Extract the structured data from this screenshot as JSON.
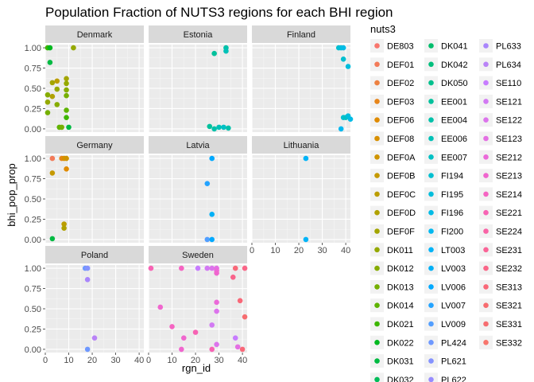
{
  "chart_data": {
    "type": "scatter",
    "title": "Population Fraction of NUTS3 regions for each BHI region",
    "xlabel": "rgn_id",
    "ylabel": "bhi_pop_prop",
    "xlim": [
      0,
      42
    ],
    "ylim": [
      -0.04,
      1.04
    ],
    "x_ticks": [
      0,
      10,
      20,
      30,
      40
    ],
    "y_ticks": [
      0.0,
      0.25,
      0.5,
      0.75,
      1.0
    ],
    "y_tick_labels": [
      "0.00",
      "0.25",
      "0.50",
      "0.75",
      "1.00"
    ],
    "grid": true,
    "facet_layout": {
      "columns": 3,
      "rows": 3
    },
    "legend": {
      "title": "nuts3",
      "placement": "right",
      "entries": [
        {
          "name": "DE803",
          "color": "#F8766D"
        },
        {
          "name": "DEF01",
          "color": "#F37B59"
        },
        {
          "name": "DEF02",
          "color": "#ED8141"
        },
        {
          "name": "DEF03",
          "color": "#E7861B"
        },
        {
          "name": "DEF06",
          "color": "#E08B00"
        },
        {
          "name": "DEF08",
          "color": "#D89000"
        },
        {
          "name": "DEF0A",
          "color": "#CF9400"
        },
        {
          "name": "DEF0B",
          "color": "#C59900"
        },
        {
          "name": "DEF0C",
          "color": "#BB9D00"
        },
        {
          "name": "DEF0D",
          "color": "#B0A100"
        },
        {
          "name": "DEF0F",
          "color": "#A3A500"
        },
        {
          "name": "DK011",
          "color": "#95A900"
        },
        {
          "name": "DK012",
          "color": "#86AC00"
        },
        {
          "name": "DK013",
          "color": "#75AF00"
        },
        {
          "name": "DK014",
          "color": "#5EB300"
        },
        {
          "name": "DK021",
          "color": "#3DB600"
        },
        {
          "name": "DK022",
          "color": "#00B81F"
        },
        {
          "name": "DK031",
          "color": "#00BA42"
        },
        {
          "name": "DK032",
          "color": "#00BC59"
        },
        {
          "name": "DK041",
          "color": "#00BD6C"
        },
        {
          "name": "DK042",
          "color": "#00BF7D"
        },
        {
          "name": "DK050",
          "color": "#00C08D"
        },
        {
          "name": "EE001",
          "color": "#00C19C"
        },
        {
          "name": "EE004",
          "color": "#00C1AA"
        },
        {
          "name": "EE006",
          "color": "#00C1B7"
        },
        {
          "name": "EE007",
          "color": "#00C0C4"
        },
        {
          "name": "FI194",
          "color": "#00BFD0"
        },
        {
          "name": "FI195",
          "color": "#00BDDC"
        },
        {
          "name": "FI196",
          "color": "#00BBE6"
        },
        {
          "name": "FI200",
          "color": "#00B8F0"
        },
        {
          "name": "LT003",
          "color": "#00B4F8"
        },
        {
          "name": "LV003",
          "color": "#00B0F6"
        },
        {
          "name": "LV006",
          "color": "#00A9FF"
        },
        {
          "name": "LV007",
          "color": "#23A3FF"
        },
        {
          "name": "LV009",
          "color": "#529EFF"
        },
        {
          "name": "PL424",
          "color": "#6E98FF"
        },
        {
          "name": "PL621",
          "color": "#8492FF"
        },
        {
          "name": "PL622",
          "color": "#978CFF"
        },
        {
          "name": "PL633",
          "color": "#A986FC"
        },
        {
          "name": "PL634",
          "color": "#B983F7"
        },
        {
          "name": "SE110",
          "color": "#C77CFF"
        },
        {
          "name": "SE121",
          "color": "#D279F3"
        },
        {
          "name": "SE122",
          "color": "#DC74EC"
        },
        {
          "name": "SE123",
          "color": "#E46FE3"
        },
        {
          "name": "SE212",
          "color": "#EB6AD9"
        },
        {
          "name": "SE213",
          "color": "#F066CE"
        },
        {
          "name": "SE214",
          "color": "#F564C2"
        },
        {
          "name": "SE221",
          "color": "#F763B4"
        },
        {
          "name": "SE224",
          "color": "#F963A6"
        },
        {
          "name": "SE231",
          "color": "#FA6497"
        },
        {
          "name": "SE232",
          "color": "#FA6688"
        },
        {
          "name": "SE313",
          "color": "#F96878"
        },
        {
          "name": "SE321",
          "color": "#F76B6E"
        },
        {
          "name": "SE331",
          "color": "#F66D70"
        },
        {
          "name": "SE332",
          "color": "#F8766D"
        }
      ]
    },
    "panels": [
      {
        "country": "Denmark",
        "points": [
          {
            "x": 1,
            "y": 1.0,
            "c": "#3DB600"
          },
          {
            "x": 2,
            "y": 1.0,
            "c": "#00B81F"
          },
          {
            "x": 2,
            "y": 0.82,
            "c": "#00BA42"
          },
          {
            "x": 1,
            "y": 0.42,
            "c": "#86AC00"
          },
          {
            "x": 1,
            "y": 0.2,
            "c": "#75AF00"
          },
          {
            "x": 1,
            "y": 0.33,
            "c": "#95A900"
          },
          {
            "x": 3,
            "y": 0.57,
            "c": "#A3A500"
          },
          {
            "x": 3,
            "y": 0.4,
            "c": "#B0A100"
          },
          {
            "x": 5,
            "y": 0.59,
            "c": "#BB9D00"
          },
          {
            "x": 5,
            "y": 0.49,
            "c": "#95A900"
          },
          {
            "x": 5,
            "y": 0.3,
            "c": "#86AC00"
          },
          {
            "x": 6,
            "y": 0.02,
            "c": "#5EB300"
          },
          {
            "x": 7,
            "y": 0.02,
            "c": "#75AF00"
          },
          {
            "x": 9,
            "y": 0.62,
            "c": "#A3A500"
          },
          {
            "x": 9,
            "y": 0.56,
            "c": "#95A900"
          },
          {
            "x": 9,
            "y": 0.48,
            "c": "#86AC00"
          },
          {
            "x": 9,
            "y": 0.41,
            "c": "#75AF00"
          },
          {
            "x": 9,
            "y": 0.23,
            "c": "#5EB300"
          },
          {
            "x": 9,
            "y": 0.14,
            "c": "#3DB600"
          },
          {
            "x": 10,
            "y": 0.02,
            "c": "#00BA42"
          },
          {
            "x": 12,
            "y": 1.0,
            "c": "#95A900"
          }
        ]
      },
      {
        "country": "Estonia",
        "points": [
          {
            "x": 28,
            "y": 0.93,
            "c": "#00C19C"
          },
          {
            "x": 33,
            "y": 1.0,
            "c": "#00C1AA"
          },
          {
            "x": 33,
            "y": 0.96,
            "c": "#00C1B7"
          },
          {
            "x": 26,
            "y": 0.03,
            "c": "#00C19C"
          },
          {
            "x": 28,
            "y": 0.0,
            "c": "#00C1AA"
          },
          {
            "x": 30,
            "y": 0.02,
            "c": "#00C1B7"
          },
          {
            "x": 32,
            "y": 0.02,
            "c": "#00C0C4"
          },
          {
            "x": 34,
            "y": 0.01,
            "c": "#00C1AA"
          }
        ]
      },
      {
        "country": "Finland",
        "points": [
          {
            "x": 37,
            "y": 1.0,
            "c": "#00BFD0"
          },
          {
            "x": 38,
            "y": 1.0,
            "c": "#00BDDC"
          },
          {
            "x": 39,
            "y": 1.0,
            "c": "#00BBE6"
          },
          {
            "x": 39,
            "y": 0.86,
            "c": "#00BFD0"
          },
          {
            "x": 41,
            "y": 0.77,
            "c": "#00BDDC"
          },
          {
            "x": 39,
            "y": 0.14,
            "c": "#00BFD0"
          },
          {
            "x": 40,
            "y": 0.14,
            "c": "#00C0C4"
          },
          {
            "x": 41,
            "y": 0.16,
            "c": "#00BDDC"
          },
          {
            "x": 42,
            "y": 0.12,
            "c": "#00BBE6"
          },
          {
            "x": 38,
            "y": 0.0,
            "c": "#00B8F0"
          }
        ]
      },
      {
        "country": "Germany",
        "points": [
          {
            "x": 3,
            "y": 1.0,
            "c": "#F37B59"
          },
          {
            "x": 7,
            "y": 1.0,
            "c": "#E7861B"
          },
          {
            "x": 8,
            "y": 1.0,
            "c": "#D89000"
          },
          {
            "x": 9,
            "y": 1.0,
            "c": "#CF9400"
          },
          {
            "x": 3,
            "y": 0.82,
            "c": "#C59900"
          },
          {
            "x": 9,
            "y": 0.87,
            "c": "#E08B00"
          },
          {
            "x": 8,
            "y": 0.19,
            "c": "#BB9D00"
          },
          {
            "x": 8,
            "y": 0.14,
            "c": "#B0A100"
          },
          {
            "x": 3,
            "y": 0.01,
            "c": "#00BA42"
          }
        ]
      },
      {
        "country": "Latvia",
        "points": [
          {
            "x": 27,
            "y": 1.0,
            "c": "#00A9FF"
          },
          {
            "x": 25,
            "y": 0.69,
            "c": "#23A3FF"
          },
          {
            "x": 27,
            "y": 0.31,
            "c": "#00B0F6"
          },
          {
            "x": 25,
            "y": 0.0,
            "c": "#529EFF"
          },
          {
            "x": 27,
            "y": 0.0,
            "c": "#00A9FF"
          }
        ]
      },
      {
        "country": "Lithuania",
        "points": [
          {
            "x": 23,
            "y": 1.0,
            "c": "#00B4F8"
          },
          {
            "x": 23,
            "y": 0.0,
            "c": "#00B4F8"
          }
        ]
      },
      {
        "country": "Poland",
        "points": [
          {
            "x": 17,
            "y": 1.0,
            "c": "#6E98FF"
          },
          {
            "x": 18,
            "y": 1.0,
            "c": "#8492FF"
          },
          {
            "x": 18,
            "y": 0.86,
            "c": "#A986FC"
          },
          {
            "x": 21,
            "y": 0.14,
            "c": "#B983F7"
          },
          {
            "x": 18,
            "y": 0.0,
            "c": "#6E98FF"
          }
        ]
      },
      {
        "country": "Sweden",
        "points": [
          {
            "x": 1,
            "y": 1.0,
            "c": "#F763B4"
          },
          {
            "x": 14,
            "y": 1.0,
            "c": "#F564C2"
          },
          {
            "x": 21,
            "y": 1.0,
            "c": "#C77CFF"
          },
          {
            "x": 25,
            "y": 1.0,
            "c": "#D279F3"
          },
          {
            "x": 27,
            "y": 1.0,
            "c": "#DC74EC"
          },
          {
            "x": 29,
            "y": 1.0,
            "c": "#E46FE3"
          },
          {
            "x": 37,
            "y": 1.0,
            "c": "#F96878"
          },
          {
            "x": 41,
            "y": 1.0,
            "c": "#FA6688"
          },
          {
            "x": 29,
            "y": 0.97,
            "c": "#EB6AD9"
          },
          {
            "x": 29,
            "y": 0.94,
            "c": "#F066CE"
          },
          {
            "x": 36,
            "y": 0.89,
            "c": "#F9638A"
          },
          {
            "x": 39,
            "y": 0.6,
            "c": "#F96878"
          },
          {
            "x": 29,
            "y": 0.58,
            "c": "#EB6AD9"
          },
          {
            "x": 5,
            "y": 0.52,
            "c": "#F066CE"
          },
          {
            "x": 29,
            "y": 0.47,
            "c": "#DC74EC"
          },
          {
            "x": 41,
            "y": 0.4,
            "c": "#F66D70"
          },
          {
            "x": 27,
            "y": 0.3,
            "c": "#D279F3"
          },
          {
            "x": 10,
            "y": 0.28,
            "c": "#F564C2"
          },
          {
            "x": 20,
            "y": 0.21,
            "c": "#F763B4"
          },
          {
            "x": 15,
            "y": 0.14,
            "c": "#F066CE"
          },
          {
            "x": 37,
            "y": 0.14,
            "c": "#C77CFF"
          },
          {
            "x": 29,
            "y": 0.06,
            "c": "#DC74EC"
          },
          {
            "x": 38,
            "y": 0.03,
            "c": "#E46FE3"
          },
          {
            "x": 14,
            "y": 0.0,
            "c": "#F066CE"
          },
          {
            "x": 27,
            "y": 0.0,
            "c": "#F763B4"
          },
          {
            "x": 40,
            "y": 0.0,
            "c": "#F96878"
          }
        ]
      }
    ]
  }
}
